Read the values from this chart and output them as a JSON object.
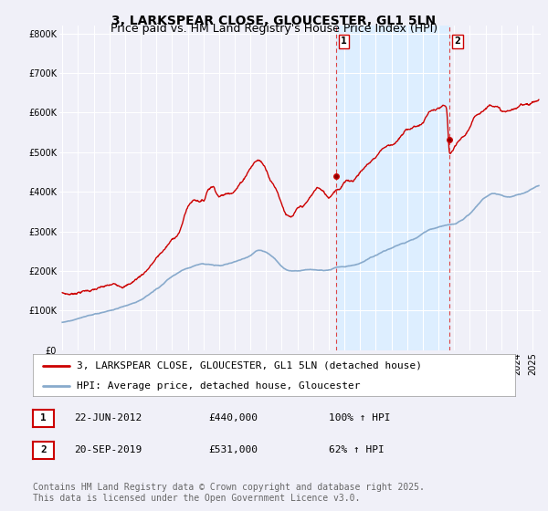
{
  "title": "3, LARKSPEAR CLOSE, GLOUCESTER, GL1 5LN",
  "subtitle": "Price paid vs. HM Land Registry's House Price Index (HPI)",
  "ylabel_ticks": [
    "£0",
    "£100K",
    "£200K",
    "£300K",
    "£400K",
    "£500K",
    "£600K",
    "£700K",
    "£800K"
  ],
  "ytick_values": [
    0,
    100000,
    200000,
    300000,
    400000,
    500000,
    600000,
    700000,
    800000
  ],
  "ylim": [
    0,
    820000
  ],
  "xlim_start": 1994.8,
  "xlim_end": 2025.5,
  "background_color": "#f0f0f8",
  "plot_bg_color": "#f0f0f8",
  "grid_color": "#ffffff",
  "red_line_color": "#cc0000",
  "blue_line_color": "#88aacc",
  "shade_color": "#ddeeff",
  "dashed_line_color": "#dd4444",
  "transaction1_x": 2012.47,
  "transaction2_x": 2019.72,
  "transaction1_y": 440000,
  "transaction2_y": 531000,
  "legend_red": "3, LARKSPEAR CLOSE, GLOUCESTER, GL1 5LN (detached house)",
  "legend_blue": "HPI: Average price, detached house, Gloucester",
  "table_row1": [
    "1",
    "22-JUN-2012",
    "£440,000",
    "100% ↑ HPI"
  ],
  "table_row2": [
    "2",
    "20-SEP-2019",
    "£531,000",
    "62% ↑ HPI"
  ],
  "footer": "Contains HM Land Registry data © Crown copyright and database right 2025.\nThis data is licensed under the Open Government Licence v3.0.",
  "title_fontsize": 10,
  "subtitle_fontsize": 9,
  "tick_fontsize": 7,
  "legend_fontsize": 8,
  "table_fontsize": 8,
  "footer_fontsize": 7
}
